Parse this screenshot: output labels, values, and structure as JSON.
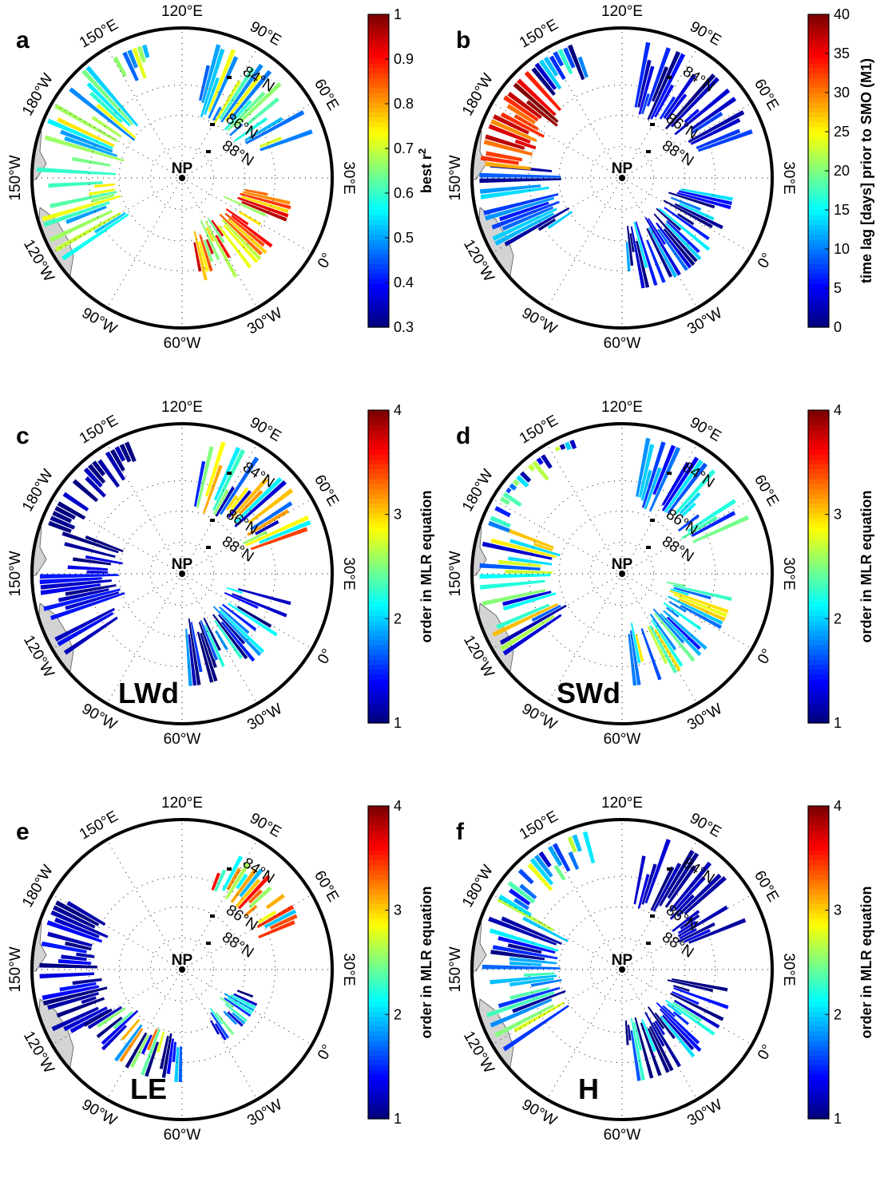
{
  "chart_data": [
    {
      "type": "heatmap",
      "panel_letter": "a",
      "title": "",
      "colorbar": {
        "label": "best r",
        "label_superscript": "2",
        "range": [
          0.3,
          1.0
        ],
        "ticks": [
          "0.3",
          "0.4",
          "0.5",
          "0.6",
          "0.7",
          "0.8",
          "0.9",
          "1"
        ]
      },
      "map_text": ""
    },
    {
      "type": "heatmap",
      "panel_letter": "b",
      "title": "",
      "colorbar": {
        "label": "time lag [days] prior to SMO (M1)",
        "label_superscript": "",
        "range": [
          0,
          40
        ],
        "ticks": [
          "0",
          "5",
          "10",
          "15",
          "20",
          "25",
          "30",
          "35",
          "40"
        ]
      },
      "map_text": ""
    },
    {
      "type": "heatmap",
      "panel_letter": "c",
      "title": "",
      "colorbar": {
        "label": "order in MLR equation",
        "label_superscript": "",
        "range": [
          1,
          4
        ],
        "ticks": [
          "1",
          "2",
          "3",
          "4"
        ]
      },
      "map_text": "LWd"
    },
    {
      "type": "heatmap",
      "panel_letter": "d",
      "title": "",
      "colorbar": {
        "label": "order in MLR equation",
        "label_superscript": "",
        "range": [
          1,
          4
        ],
        "ticks": [
          "1",
          "2",
          "3",
          "4"
        ]
      },
      "map_text": "SWd"
    },
    {
      "type": "heatmap",
      "panel_letter": "e",
      "title": "",
      "colorbar": {
        "label": "order in MLR equation",
        "label_superscript": "",
        "range": [
          1,
          4
        ],
        "ticks": [
          "1",
          "2",
          "3",
          "4"
        ]
      },
      "map_text": "LE"
    },
    {
      "type": "heatmap",
      "panel_letter": "f",
      "title": "",
      "colorbar": {
        "label": "order in MLR equation",
        "label_superscript": "",
        "range": [
          1,
          4
        ],
        "ticks": [
          "1",
          "2",
          "3",
          "4"
        ]
      },
      "map_text": "H"
    }
  ],
  "map": {
    "pole_label": "NP",
    "lon_labels": [
      "150°W",
      "180°W",
      "150°E",
      "120°E",
      "90°E",
      "60°E",
      "30°E",
      "0°",
      "30°W",
      "60°W",
      "90°W",
      "120°W"
    ],
    "lat_labels": [
      "84°N",
      "86°N",
      "88°N"
    ],
    "colors": {
      "frame": "#000000",
      "land": "#d3d3d3"
    }
  }
}
